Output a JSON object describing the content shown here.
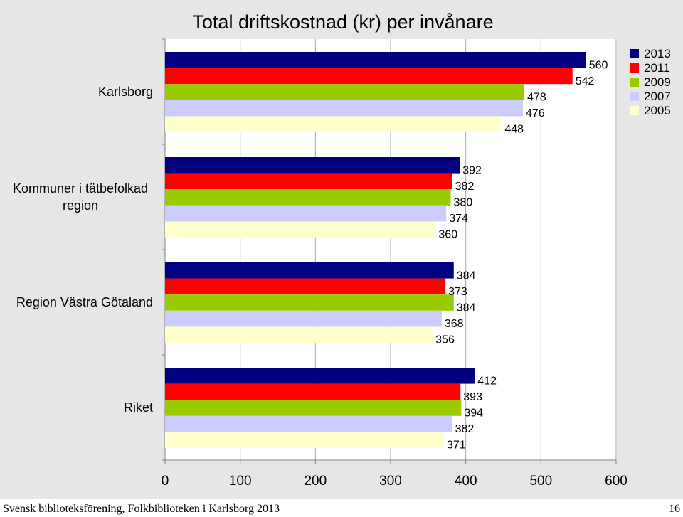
{
  "chart_data": {
    "type": "bar",
    "orientation": "horizontal",
    "title": "Total driftskostnad (kr) per invånare",
    "categories": [
      "Karlsborg",
      "Kommuner i tätbefolkad region",
      "Region Västra Götaland",
      "Riket"
    ],
    "series": [
      {
        "name": "2013",
        "color": "#000080",
        "values": [
          560,
          392,
          384,
          412
        ]
      },
      {
        "name": "2011",
        "color": "#ff0000",
        "values": [
          542,
          382,
          373,
          393
        ]
      },
      {
        "name": "2009",
        "color": "#99cc00",
        "values": [
          478,
          380,
          384,
          394
        ]
      },
      {
        "name": "2007",
        "color": "#ccccff",
        "values": [
          476,
          374,
          368,
          382
        ]
      },
      {
        "name": "2005",
        "color": "#ffffcc",
        "values": [
          448,
          360,
          356,
          371
        ]
      }
    ],
    "xlim": [
      0,
      600
    ],
    "xticks": [
      "0",
      "100",
      "200",
      "300",
      "400",
      "500",
      "600"
    ],
    "grid": true,
    "legend_position": "top-right",
    "data_labels": true
  },
  "footer": {
    "source": "Svensk biblioteksförening, Folkbiblioteken i Karlsborg 2013",
    "page_number": "16"
  }
}
